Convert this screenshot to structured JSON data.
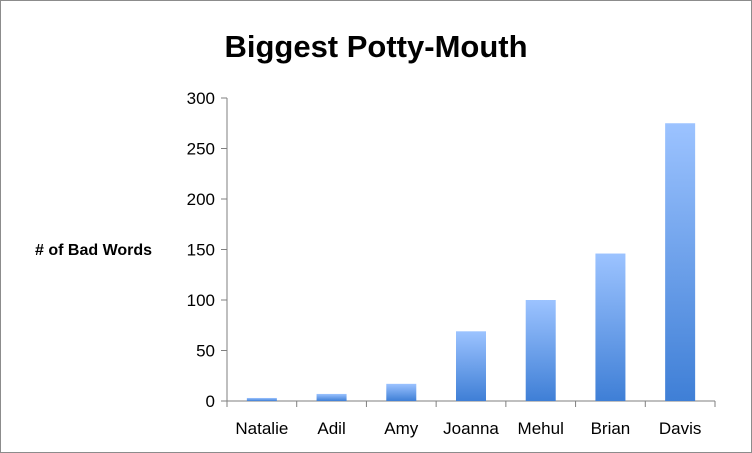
{
  "chart_data": {
    "type": "bar",
    "title": "Biggest Potty-Mouth",
    "xlabel": "",
    "ylabel": "# of Bad Words",
    "categories": [
      "Natalie",
      "Adil",
      "Amy",
      "Joanna",
      "Mehul",
      "Brian",
      "Davis"
    ],
    "values": [
      3,
      7,
      17,
      69,
      100,
      146,
      275
    ],
    "ylim": [
      0,
      300
    ],
    "yticks": [
      0,
      50,
      100,
      150,
      200,
      250,
      300
    ],
    "grid": false,
    "legend": "none",
    "bar_color_top": "#9cc3ff",
    "bar_color_bottom": "#3f7fd6"
  }
}
